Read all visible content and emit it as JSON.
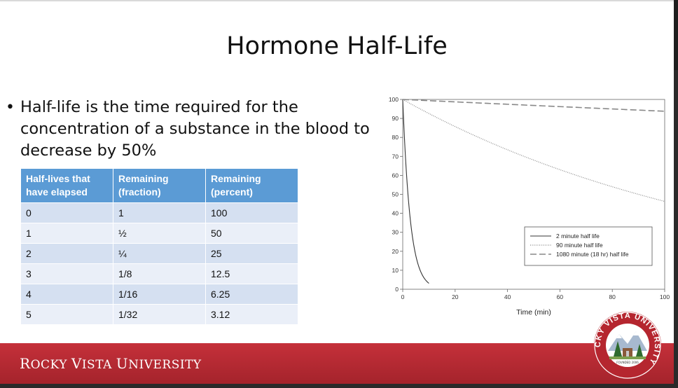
{
  "slide": {
    "title": "Hormone Half-Life",
    "bullet": {
      "symbol": "•",
      "lines": [
        "Half-life is the time required for the",
        "concentration of a substance in the blood to",
        "decrease by 50%"
      ]
    }
  },
  "table": {
    "headers": [
      [
        "Half-lives that",
        "have elapsed"
      ],
      [
        "Remaining",
        "(fraction)"
      ],
      [
        "Remaining",
        "(percent)"
      ]
    ],
    "rows": [
      [
        "0",
        "1",
        "100"
      ],
      [
        "1",
        "½",
        "50"
      ],
      [
        "2",
        "¼",
        "25"
      ],
      [
        "3",
        "1/8",
        "12.5"
      ],
      [
        "4",
        "1/16",
        "6.25"
      ],
      [
        "5",
        "1/32",
        "3.12"
      ]
    ],
    "header_color": "#5b9bd5",
    "row_colors": [
      "#d5e0f1",
      "#eaeff8"
    ]
  },
  "chart_data": {
    "type": "line",
    "xlabel": "Time (min)",
    "ylabel": "",
    "xlim": [
      0,
      100
    ],
    "ylim": [
      0,
      100
    ],
    "x_ticks": [
      0,
      20,
      40,
      60,
      80,
      100
    ],
    "y_ticks": [
      0,
      10,
      20,
      30,
      40,
      50,
      60,
      70,
      80,
      90,
      100
    ],
    "grid": false,
    "legend_position": "right",
    "series": [
      {
        "name": "2 minute half life",
        "half_life": 2,
        "x_max": 10,
        "style": "solid"
      },
      {
        "name": "90 minute half life",
        "half_life": 90,
        "x_max": 100,
        "style": "dotted"
      },
      {
        "name": "1080 minute (18 hr) half life",
        "half_life": 1080,
        "x_max": 100,
        "style": "dashed"
      }
    ]
  },
  "footer": {
    "brand_parts": [
      "R",
      "OCKY ",
      "V",
      "ISTA ",
      "U",
      "NIVERSITY"
    ],
    "color": "#b5262f"
  },
  "seal": {
    "text": "ROCKY VISTA UNIVERSITY",
    "founded": "FOUNDED 2006"
  }
}
